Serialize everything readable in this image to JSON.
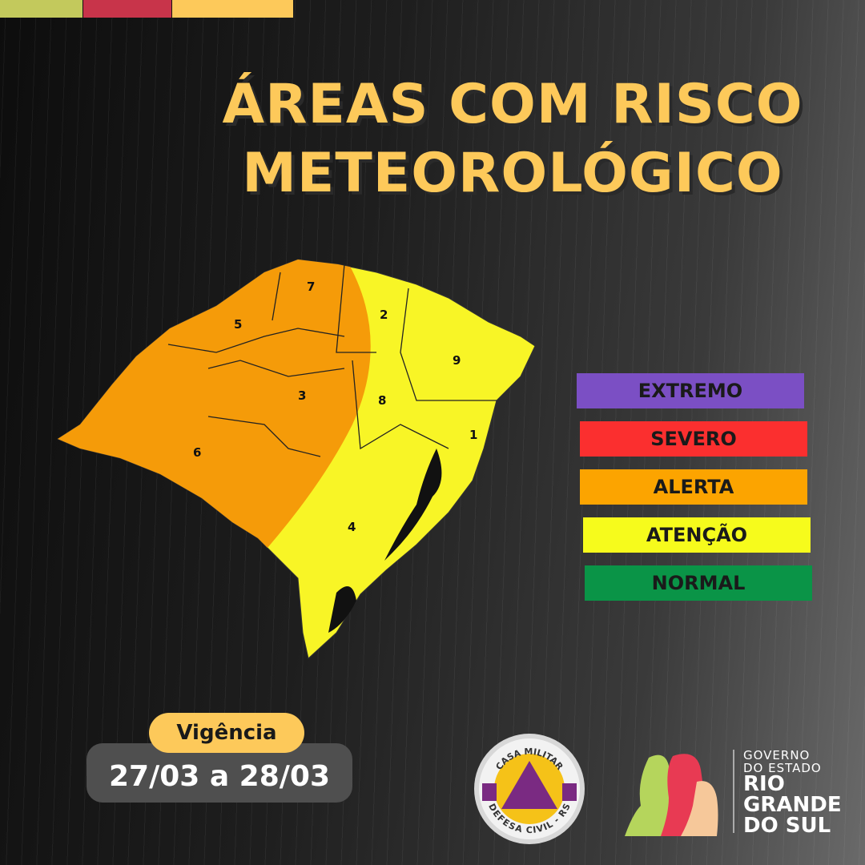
{
  "top_bars": {
    "colors": [
      "#c3c95c",
      "#c8344a",
      "#fdc95a"
    ]
  },
  "title": {
    "line1": "ÁREAS COM RISCO",
    "line2": "METEOROLÓGICO"
  },
  "map": {
    "regions": [
      {
        "id": "1",
        "level": "ATENÇÃO"
      },
      {
        "id": "2",
        "level": "ATENÇÃO"
      },
      {
        "id": "3",
        "level": "ALERTA"
      },
      {
        "id": "4",
        "level": "ATENÇÃO"
      },
      {
        "id": "5",
        "level": "ALERTA"
      },
      {
        "id": "6",
        "level": "ALERTA"
      },
      {
        "id": "7",
        "level": "ALERTA"
      },
      {
        "id": "8",
        "level": "ATENÇÃO"
      },
      {
        "id": "9",
        "level": "ATENÇÃO"
      }
    ]
  },
  "legend": [
    {
      "label": "EXTREMO",
      "color": "#7b4fc4"
    },
    {
      "label": "SEVERO",
      "color": "#fb2f2f"
    },
    {
      "label": "ALERTA",
      "color": "#fca400"
    },
    {
      "label": "ATENÇÃO",
      "color": "#f6fb1c"
    },
    {
      "label": "NORMAL",
      "color": "#0a9447"
    }
  ],
  "validity": {
    "label": "Vigência",
    "dates": "27/03 a 28/03"
  },
  "logos": {
    "defesa_civil": {
      "top": "CASA MILITAR",
      "bottom": "DEFESA CIVIL - RS"
    },
    "government": {
      "line1": "GOVERNO",
      "line2": "DO ESTADO",
      "line3": "RIO",
      "line4": "GRANDE",
      "line5": "DO SUL"
    }
  }
}
